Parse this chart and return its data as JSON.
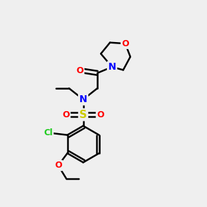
{
  "bg_color": "#efefef",
  "bond_color": "#000000",
  "bond_width": 1.8,
  "atom_colors": {
    "O": "#ff0000",
    "N": "#0000ff",
    "S": "#cccc00",
    "Cl": "#22cc22",
    "C": "#000000"
  },
  "font_size": 9,
  "fig_size": [
    3.0,
    3.0
  ],
  "dpi": 100
}
